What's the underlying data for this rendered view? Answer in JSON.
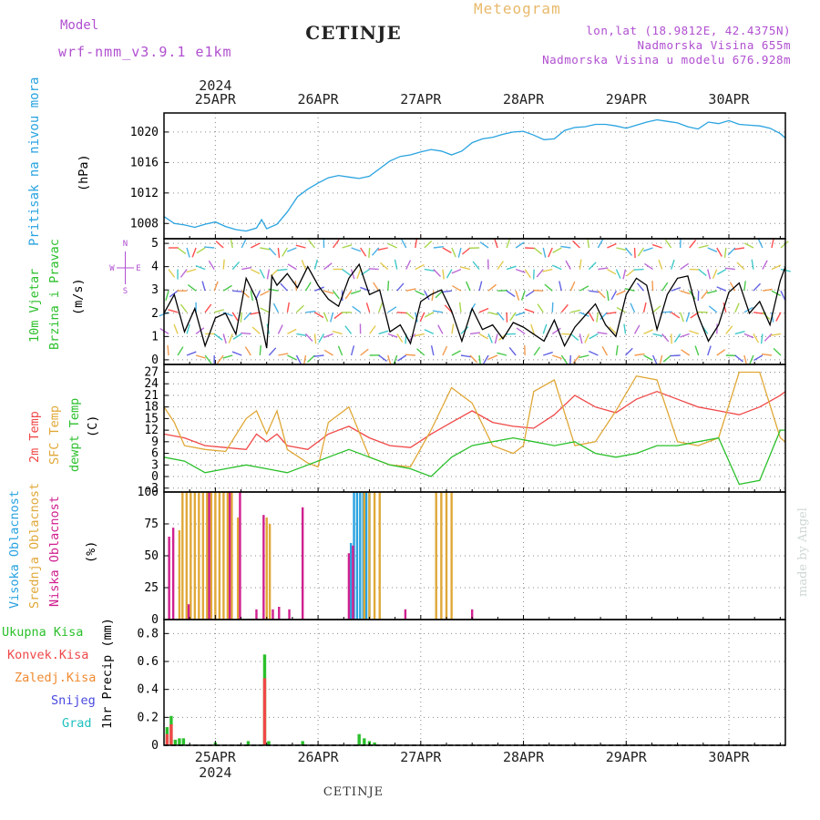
{
  "header": {
    "model_label": "Model",
    "model_name": "wrf-nmm_v3.9.1 e1km",
    "title": "CETINJE",
    "subtitle": "Meteogram",
    "coords": "lon,lat (18.9812E, 42.4375N)",
    "elevation": "Nadmorska Visina 655m",
    "model_elevation": "Nadmorska Visina u modelu 676.928m"
  },
  "footer": {
    "station": "CETINJE",
    "credit": "made by Angel"
  },
  "x_axis": {
    "year": "2024",
    "ticks": [
      "25APR",
      "26APR",
      "27APR",
      "28APR",
      "29APR",
      "30APR"
    ],
    "range_days": [
      0,
      6.05
    ],
    "tick_days": [
      0.5,
      1.5,
      2.5,
      3.5,
      4.5,
      5.5
    ]
  },
  "panels": {
    "pressure": {
      "labels": [
        "Pritisak na nivou mora",
        "(hPa)"
      ],
      "colors": [
        "#29a3e0",
        "#000000"
      ]
    },
    "wind": {
      "labels": [
        "10m Vjetar",
        "Brzina i Pravac",
        "(m/s)"
      ],
      "colors": [
        "#2bc02b",
        "#2bc02b",
        "#000000"
      ],
      "compass": {
        "w": "W",
        "e": "E",
        "n": "N",
        "s": "S"
      }
    },
    "temperature": {
      "labels": [
        "2m Temp",
        "SFC Temp",
        "dewpt Temp",
        "(C)"
      ],
      "colors": [
        "#f04848",
        "#e0a838",
        "#2bc02b",
        "#000000"
      ]
    },
    "clouds": {
      "labels": [
        "Visoka Oblacnost",
        "Srednja Oblacnost",
        "Niska Oblacnost",
        "(%)"
      ],
      "colors": [
        "#29a3e0",
        "#e0a838",
        "#d02090",
        "#000000"
      ]
    },
    "precip": {
      "legend": [
        "Ukupna Kisa",
        "Konvek.Kisa",
        "Zaledj.Kisa",
        "Snijeg",
        "Grad"
      ],
      "legend_colors": [
        "#2bc02b",
        "#f04848",
        "#f08a30",
        "#4848e0",
        "#20c0c0"
      ],
      "ylabel": "1hr Precip (mm)"
    }
  },
  "chart_data": [
    {
      "type": "line",
      "title": "",
      "ylabel": "(hPa)",
      "yticks": [
        1008,
        1012,
        1016,
        1020
      ],
      "ylim": [
        1006,
        1022.5
      ],
      "grid": true,
      "series": [
        {
          "name": "Pritisak na nivou mora",
          "color": "#29a3e0",
          "x": [
            0,
            0.1,
            0.2,
            0.3,
            0.4,
            0.5,
            0.6,
            0.7,
            0.8,
            0.9,
            0.95,
            1.0,
            1.1,
            1.2,
            1.3,
            1.4,
            1.5,
            1.6,
            1.7,
            1.8,
            1.9,
            2.0,
            2.1,
            2.2,
            2.3,
            2.4,
            2.5,
            2.6,
            2.7,
            2.8,
            2.9,
            3.0,
            3.1,
            3.2,
            3.3,
            3.4,
            3.5,
            3.6,
            3.7,
            3.8,
            3.9,
            4.0,
            4.1,
            4.2,
            4.3,
            4.4,
            4.5,
            4.6,
            4.7,
            4.8,
            4.9,
            5.0,
            5.1,
            5.2,
            5.3,
            5.4,
            5.5,
            5.6,
            5.7,
            5.8,
            5.9,
            6.0,
            6.05
          ],
          "y": [
            1008.9,
            1008.0,
            1007.8,
            1007.5,
            1007.9,
            1008.2,
            1007.6,
            1007.2,
            1007.0,
            1007.4,
            1008.5,
            1007.3,
            1007.9,
            1009.5,
            1011.5,
            1012.5,
            1013.3,
            1014.0,
            1014.3,
            1014.1,
            1013.9,
            1014.2,
            1015.2,
            1016.2,
            1016.8,
            1017.0,
            1017.4,
            1017.7,
            1017.5,
            1017.0,
            1017.5,
            1018.6,
            1019.1,
            1019.3,
            1019.7,
            1020.0,
            1020.1,
            1019.6,
            1019.0,
            1019.1,
            1020.2,
            1020.6,
            1020.7,
            1021.0,
            1021.0,
            1020.8,
            1020.5,
            1020.9,
            1021.3,
            1021.6,
            1021.4,
            1021.2,
            1020.7,
            1020.4,
            1021.3,
            1021.1,
            1021.5,
            1021.0,
            1020.9,
            1020.8,
            1020.5,
            1019.8,
            1019.2
          ]
        }
      ]
    },
    {
      "type": "line",
      "title": "",
      "ylabel": "(m/s)",
      "yticks": [
        0,
        1,
        2,
        3,
        4,
        5
      ],
      "ylim": [
        -0.2,
        5.2
      ],
      "grid": true,
      "series": [
        {
          "name": "10m Vjetar",
          "color": "#000000",
          "x": [
            0,
            0.1,
            0.2,
            0.3,
            0.4,
            0.5,
            0.6,
            0.7,
            0.8,
            0.9,
            1.0,
            1.05,
            1.1,
            1.2,
            1.3,
            1.4,
            1.5,
            1.6,
            1.7,
            1.8,
            1.9,
            2.0,
            2.1,
            2.2,
            2.3,
            2.4,
            2.5,
            2.6,
            2.7,
            2.8,
            2.9,
            3.0,
            3.1,
            3.2,
            3.3,
            3.4,
            3.5,
            3.6,
            3.7,
            3.8,
            3.9,
            4.0,
            4.1,
            4.2,
            4.3,
            4.4,
            4.5,
            4.6,
            4.7,
            4.8,
            4.9,
            5.0,
            5.1,
            5.2,
            5.3,
            5.4,
            5.5,
            5.6,
            5.7,
            5.8,
            5.9,
            6.0,
            6.05
          ],
          "y": [
            2.0,
            2.8,
            1.2,
            2.2,
            0.6,
            1.8,
            2.0,
            1.1,
            3.5,
            2.6,
            0.5,
            3.6,
            3.2,
            3.7,
            3.1,
            4.0,
            3.2,
            2.6,
            2.3,
            3.5,
            4.1,
            2.8,
            3.0,
            1.2,
            1.5,
            0.7,
            2.5,
            2.8,
            3.0,
            2.1,
            0.8,
            2.2,
            1.3,
            1.5,
            0.9,
            1.6,
            1.4,
            1.1,
            0.8,
            1.7,
            0.6,
            1.4,
            1.9,
            2.4,
            1.5,
            1.0,
            2.8,
            3.5,
            3.2,
            1.3,
            2.8,
            3.5,
            3.6,
            1.9,
            0.8,
            1.5,
            2.9,
            3.3,
            2.0,
            2.5,
            1.5,
            3.4,
            4.0
          ]
        }
      ]
    },
    {
      "type": "line",
      "title": "",
      "ylabel": "(C)",
      "yticks": [
        -3,
        0,
        3,
        6,
        9,
        12,
        15,
        18,
        21,
        24,
        27
      ],
      "ylim": [
        -4,
        29
      ],
      "grid": true,
      "series": [
        {
          "name": "2m Temp",
          "color": "#f04848",
          "x": [
            0,
            0.2,
            0.4,
            0.6,
            0.8,
            0.9,
            1.0,
            1.1,
            1.2,
            1.4,
            1.6,
            1.8,
            2.0,
            2.2,
            2.4,
            2.6,
            2.8,
            3.0,
            3.2,
            3.4,
            3.6,
            3.8,
            4.0,
            4.2,
            4.4,
            4.6,
            4.8,
            5.0,
            5.2,
            5.4,
            5.6,
            5.8,
            6.0,
            6.05
          ],
          "y": [
            11,
            10,
            8,
            7.5,
            7,
            11,
            9,
            11,
            8,
            7,
            11,
            13,
            10,
            8,
            7.5,
            11,
            14,
            17,
            14,
            13,
            12.5,
            16,
            21,
            18,
            16.5,
            20,
            22,
            20,
            18,
            17,
            16,
            18,
            21,
            22
          ]
        },
        {
          "name": "SFC Temp",
          "color": "#e0a838",
          "x": [
            0,
            0.1,
            0.2,
            0.4,
            0.6,
            0.8,
            0.9,
            1.0,
            1.1,
            1.2,
            1.4,
            1.5,
            1.6,
            1.8,
            2.0,
            2.2,
            2.4,
            2.6,
            2.8,
            3.0,
            3.2,
            3.4,
            3.5,
            3.6,
            3.8,
            4.0,
            4.2,
            4.4,
            4.6,
            4.8,
            5.0,
            5.2,
            5.4,
            5.6,
            5.8,
            6.0,
            6.05
          ],
          "y": [
            18,
            14,
            8,
            7,
            6.5,
            15,
            17,
            11,
            17,
            7,
            3.5,
            2.5,
            14,
            18,
            5,
            3,
            2.5,
            12,
            23,
            19,
            8,
            6,
            8,
            22,
            25,
            8,
            9,
            17,
            26,
            25,
            9,
            8,
            10,
            27,
            27,
            10,
            9
          ]
        },
        {
          "name": "dewpt Temp",
          "color": "#2bc02b",
          "x": [
            0,
            0.2,
            0.4,
            0.6,
            0.8,
            1.0,
            1.2,
            1.4,
            1.6,
            1.8,
            2.0,
            2.2,
            2.4,
            2.6,
            2.8,
            3.0,
            3.2,
            3.4,
            3.6,
            3.8,
            4.0,
            4.2,
            4.4,
            4.6,
            4.8,
            5.0,
            5.2,
            5.4,
            5.6,
            5.8,
            6.0,
            6.05
          ],
          "y": [
            5,
            4,
            1,
            2,
            3,
            2,
            1,
            3,
            5,
            7,
            5,
            3,
            2,
            0,
            5,
            8,
            9,
            10,
            9,
            8,
            9,
            6,
            5,
            6,
            8,
            8,
            9,
            10,
            -2,
            -1,
            12,
            12
          ]
        }
      ]
    },
    {
      "type": "bar",
      "title": "",
      "ylabel": "(%)",
      "yticks": [
        0,
        25,
        50,
        75,
        100
      ],
      "ylim": [
        0,
        100
      ],
      "grid": true,
      "series": [
        {
          "name": "Visoka Oblacnost",
          "color": "#29a3e0",
          "x": [
            1.82,
            1.85,
            1.88,
            1.91,
            1.94,
            1.97,
            2.0
          ],
          "y": [
            60,
            100,
            100,
            100,
            100,
            100,
            100
          ]
        },
        {
          "name": "Srednja Oblacnost",
          "color": "#e0a838",
          "x": [
            0.15,
            0.18,
            0.22,
            0.26,
            0.3,
            0.34,
            0.38,
            0.42,
            0.46,
            0.5,
            0.54,
            0.58,
            0.62,
            0.66,
            0.72,
            1.0,
            1.03,
            1.95,
            2.0,
            2.05,
            2.1,
            2.65,
            2.7,
            2.75,
            2.8
          ],
          "y": [
            70,
            100,
            100,
            100,
            100,
            100,
            100,
            100,
            100,
            100,
            100,
            100,
            100,
            100,
            80,
            80,
            75,
            100,
            100,
            100,
            100,
            100,
            100,
            100,
            100
          ]
        },
        {
          "name": "Niska Oblacnost",
          "color": "#d02090",
          "x": [
            0.05,
            0.09,
            0.24,
            0.44,
            0.64,
            0.74,
            0.9,
            0.97,
            1.06,
            1.12,
            1.22,
            1.35,
            1.8,
            1.84,
            2.35,
            3.0
          ],
          "y": [
            65,
            72,
            12,
            100,
            100,
            100,
            8,
            82,
            8,
            10,
            8,
            88,
            52,
            58,
            8,
            8
          ]
        }
      ]
    },
    {
      "type": "bar",
      "title": "",
      "ylabel": "1hr Precip (mm)",
      "yticks": [
        0,
        0.2,
        0.4,
        0.6,
        0.8
      ],
      "ylim": [
        0,
        0.9
      ],
      "grid": true,
      "series": [
        {
          "name": "Ukupna Kisa",
          "color": "#2bc02b",
          "x": [
            0.03,
            0.07,
            0.11,
            0.15,
            0.19,
            0.5,
            0.82,
            0.98,
            1.02,
            1.35,
            1.9,
            1.95,
            2.0,
            2.05
          ],
          "y": [
            0.13,
            0.21,
            0.04,
            0.05,
            0.05,
            0.02,
            0.03,
            0.65,
            0.03,
            0.03,
            0.08,
            0.05,
            0.03,
            0.02
          ]
        },
        {
          "name": "Konvek.Kisa",
          "color": "#f04848",
          "x": [
            0.03,
            0.07,
            0.98
          ],
          "y": [
            0.08,
            0.15,
            0.48
          ]
        }
      ]
    }
  ]
}
